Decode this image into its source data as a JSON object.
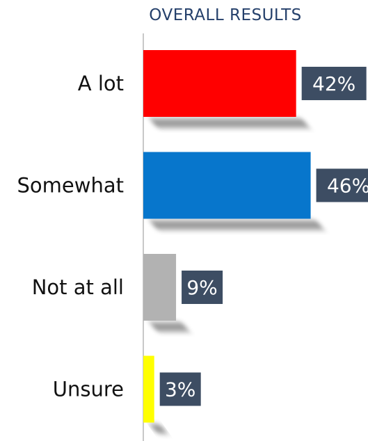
{
  "chart_data": {
    "type": "bar",
    "orientation": "horizontal",
    "title": "OVERALL RESULTS",
    "categories": [
      "A lot",
      "Somewhat",
      "Not at all",
      "Unsure"
    ],
    "values": [
      42,
      46,
      9,
      3
    ],
    "value_labels": [
      "42%",
      "46%",
      "9%",
      "3%"
    ],
    "colors": [
      "#ff0000",
      "#0776cc",
      "#b2b2b2",
      "#ffff00"
    ],
    "value_label_bg": "#3d4d63",
    "xlim": [
      0,
      55
    ],
    "grid": false,
    "legend": "none"
  }
}
